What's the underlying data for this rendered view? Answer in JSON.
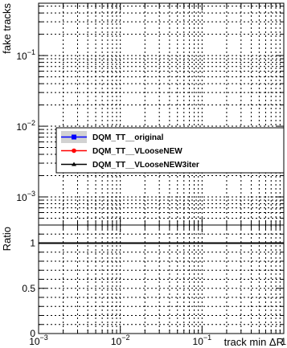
{
  "chart_data": [
    {
      "type": "line",
      "title": "",
      "xlabel": "",
      "ylabel": "fake tracks",
      "xscale": "log",
      "yscale": "log",
      "xlim": [
        0.001,
        1
      ],
      "ylim": [
        0.0004,
        0.55
      ],
      "grid": true,
      "legend_position": "left-middle",
      "y_ticks": [
        {
          "value": 0.001,
          "base": "10",
          "exp": "−3"
        },
        {
          "value": 0.01,
          "base": "10",
          "exp": "−2"
        },
        {
          "value": 0.1,
          "base": "10",
          "exp": "−1"
        }
      ],
      "series": [
        {
          "name": "DQM_TT__original",
          "color": "#0000ff",
          "marker": "square",
          "values": []
        },
        {
          "name": "DQM_TT__VLooseNEW",
          "color": "#ff0000",
          "marker": "circle",
          "values": []
        },
        {
          "name": "DQM_TT__VLooseNEW3iter",
          "color": "#000000",
          "marker": "triangle",
          "values": []
        }
      ]
    },
    {
      "type": "line",
      "title": "",
      "xlabel": "track min ΔR",
      "ylabel": "Ratio",
      "xscale": "log",
      "yscale": "linear",
      "xlim": [
        0.001,
        1
      ],
      "ylim": [
        0,
        1.2
      ],
      "grid": true,
      "x_ticks": [
        {
          "value": 0.001,
          "base": "10",
          "exp": "−3"
        },
        {
          "value": 0.01,
          "base": "10",
          "exp": "−2"
        },
        {
          "value": 0.1,
          "base": "10",
          "exp": "−1"
        },
        {
          "value": 1,
          "base": "1",
          "exp": ""
        }
      ],
      "y_ticks": [
        {
          "value": 0,
          "label": "0"
        },
        {
          "value": 0.5,
          "label": "0.5"
        },
        {
          "value": 1,
          "label": "1"
        }
      ],
      "reference_line": 1
    }
  ]
}
